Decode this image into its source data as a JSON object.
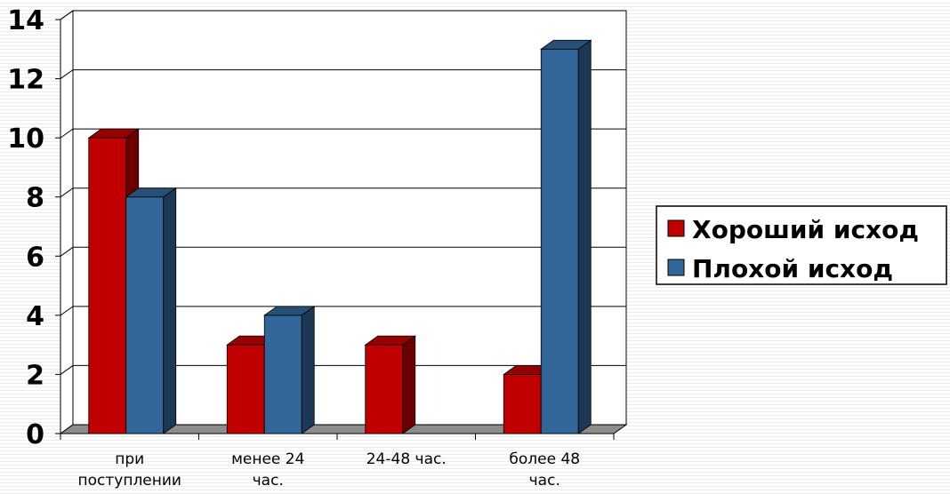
{
  "chart_data": {
    "type": "bar",
    "categories": [
      [
        "при",
        "поступлении"
      ],
      [
        "менее 24",
        "час."
      ],
      [
        "24-48 час."
      ],
      [
        "более 48",
        "час."
      ]
    ],
    "series": [
      {
        "name": "Хороший исход",
        "color": "#c00000",
        "values": [
          10,
          3,
          3,
          2
        ]
      },
      {
        "name": "Плохой исход",
        "color": "#336699",
        "values": [
          8,
          4,
          null,
          13
        ]
      }
    ],
    "ylim": [
      0,
      14
    ],
    "yticks": [
      0,
      2,
      4,
      6,
      8,
      10,
      12,
      14
    ],
    "grid": true,
    "three_d": true,
    "legend_position": "right"
  }
}
